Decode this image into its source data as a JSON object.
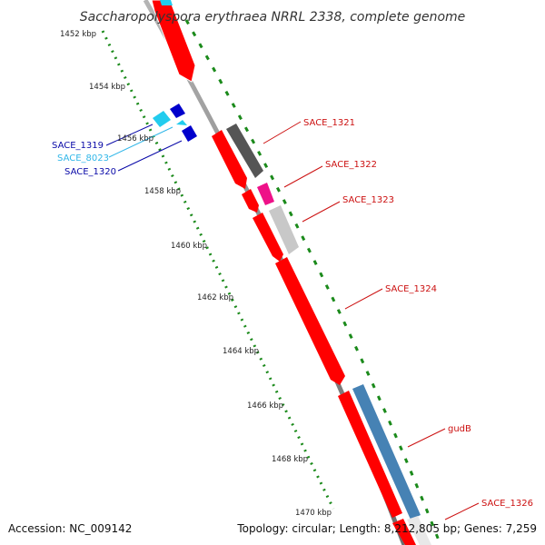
{
  "title": "Saccharopolyspora erythraea NRRL 2338, complete genome",
  "footer": {
    "accession": "Accession: NC_009142",
    "topology": "Topology: circular; Length: 8,212,805 bp; Genes: 7,259"
  },
  "ticks": [
    "1452 kbp",
    "1454 kbp",
    "1456 kbp",
    "1458 kbp",
    "1460 kbp",
    "1462 kbp",
    "1464 kbp",
    "1466 kbp",
    "1468 kbp",
    "1470 kbp"
  ],
  "genes": [
    {
      "label": "SACE_1319",
      "color": "#0a0aa8",
      "strand": "reverse"
    },
    {
      "label": "SACE_8023",
      "color": "#30b6e8",
      "strand": "reverse"
    },
    {
      "label": "SACE_1320",
      "color": "#0a0aa8",
      "strand": "reverse"
    },
    {
      "label": "SACE_1321",
      "color": "#cc1111",
      "strand": "forward"
    },
    {
      "label": "SACE_1322",
      "color": "#cc1111",
      "strand": "forward"
    },
    {
      "label": "SACE_1323",
      "color": "#cc1111",
      "strand": "forward"
    },
    {
      "label": "SACE_1324",
      "color": "#cc1111",
      "strand": "forward"
    },
    {
      "label": "gudB",
      "color": "#cc1111",
      "strand": "forward"
    },
    {
      "label": "SACE_1326",
      "color": "#cc1111",
      "strand": "forward"
    }
  ],
  "colors": {
    "cds": "#ff0000",
    "backbone": "#888888",
    "gc_skew": "#1b8a1b",
    "feature_dark_gray": "#555555",
    "feature_magenta": "#ee1188",
    "feature_light_gray": "#c8c8c8",
    "feature_steel_blue": "#4682b4",
    "feature_cyan": "#22ccee",
    "feature_navy": "#0000cc"
  }
}
